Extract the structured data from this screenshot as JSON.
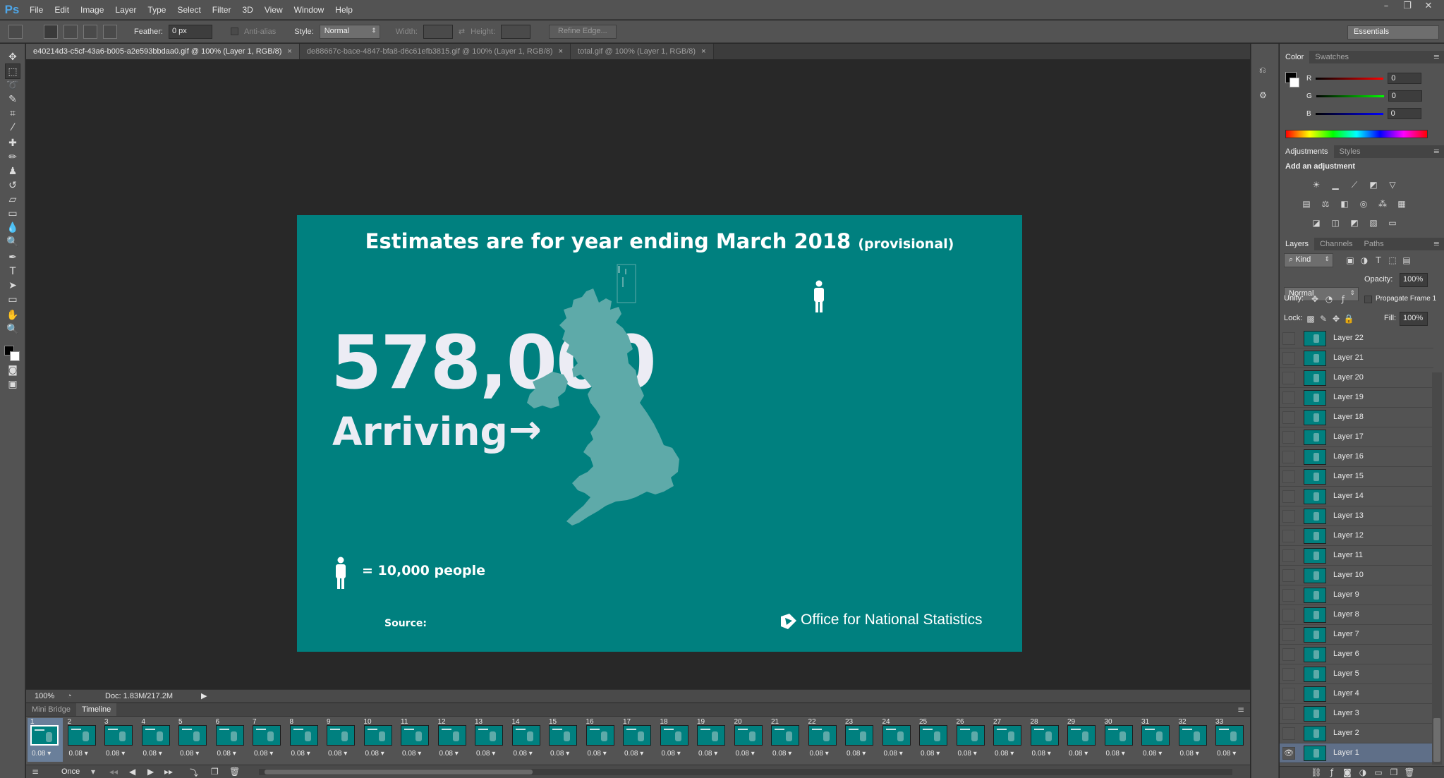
{
  "app": {
    "logo": "Ps",
    "menu": [
      "File",
      "Edit",
      "Image",
      "Layer",
      "Type",
      "Select",
      "Filter",
      "3D",
      "View",
      "Window",
      "Help"
    ],
    "window_controls": [
      "minimize-icon",
      "restore-icon",
      "close-icon"
    ]
  },
  "options_bar": {
    "feather_label": "Feather:",
    "feather_value": "0 px",
    "antialias_label": "Anti-alias",
    "style_label": "Style:",
    "style_value": "Normal",
    "width_label": "Width:",
    "height_label": "Height:",
    "refine_edge": "Refine Edge...",
    "workspace": "Essentials"
  },
  "tabs": [
    {
      "label": "e40214d3-c5cf-43a6-b005-a2e593bbdaa0.gif @ 100% (Layer 1, RGB/8)",
      "active": true
    },
    {
      "label": "de88667c-bace-4847-bfa8-d6c61efb3815.gif @ 100% (Layer 1, RGB/8)",
      "active": false
    },
    {
      "label": "total.gif @ 100% (Layer 1, RGB/8)",
      "active": false
    }
  ],
  "artwork": {
    "headline": "Estimates are for year ending March 2018",
    "headline_sub": "(provisional)",
    "big_number": "578,000",
    "arriving": "Arriving",
    "legend_text": "= 10,000 people",
    "source_label": "Source:",
    "publisher": "Office for National Statistics",
    "colors": {
      "background": "#00807f",
      "map": "#5eaaa9",
      "text": "#ffffff"
    }
  },
  "status": {
    "zoom": "100%",
    "doc_size": "Doc: 1.83M/217.2M"
  },
  "timeline": {
    "tabs": [
      "Mini Bridge",
      "Timeline"
    ],
    "active_tab": "Timeline",
    "frames": [
      {
        "n": "1",
        "d": "0.08"
      },
      {
        "n": "2",
        "d": "0.08"
      },
      {
        "n": "3",
        "d": "0.08"
      },
      {
        "n": "4",
        "d": "0.08"
      },
      {
        "n": "5",
        "d": "0.08"
      },
      {
        "n": "6",
        "d": "0.08"
      },
      {
        "n": "7",
        "d": "0.08"
      },
      {
        "n": "8",
        "d": "0.08"
      },
      {
        "n": "9",
        "d": "0.08"
      },
      {
        "n": "10",
        "d": "0.08"
      },
      {
        "n": "11",
        "d": "0.08"
      },
      {
        "n": "12",
        "d": "0.08"
      },
      {
        "n": "13",
        "d": "0.08"
      },
      {
        "n": "14",
        "d": "0.08"
      },
      {
        "n": "15",
        "d": "0.08"
      },
      {
        "n": "16",
        "d": "0.08"
      },
      {
        "n": "17",
        "d": "0.08"
      },
      {
        "n": "18",
        "d": "0.08"
      },
      {
        "n": "19",
        "d": "0.08"
      },
      {
        "n": "20",
        "d": "0.08"
      },
      {
        "n": "21",
        "d": "0.08"
      },
      {
        "n": "22",
        "d": "0.08"
      },
      {
        "n": "23",
        "d": "0.08"
      },
      {
        "n": "24",
        "d": "0.08"
      },
      {
        "n": "25",
        "d": "0.08"
      },
      {
        "n": "26",
        "d": "0.08"
      },
      {
        "n": "27",
        "d": "0.08"
      },
      {
        "n": "28",
        "d": "0.08"
      },
      {
        "n": "29",
        "d": "0.08"
      },
      {
        "n": "30",
        "d": "0.08"
      },
      {
        "n": "31",
        "d": "0.08"
      },
      {
        "n": "32",
        "d": "0.08"
      },
      {
        "n": "33",
        "d": "0.08"
      }
    ],
    "loop": "Once"
  },
  "color_panel": {
    "tabs": [
      "Color",
      "Swatches"
    ],
    "r_label": "R",
    "g_label": "G",
    "b_label": "B",
    "r": "0",
    "g": "0",
    "b": "0"
  },
  "adjustments_panel": {
    "tabs": [
      "Adjustments",
      "Styles"
    ],
    "title": "Add an adjustment"
  },
  "layers_panel": {
    "tabs": [
      "Layers",
      "Channels",
      "Paths"
    ],
    "kind": "Kind",
    "blend_mode": "Normal",
    "opacity_label": "Opacity:",
    "opacity": "100%",
    "unify_label": "Unify:",
    "propagate": "Propagate Frame 1",
    "lock_label": "Lock:",
    "fill_label": "Fill:",
    "fill": "100%",
    "layers": [
      "Layer 22",
      "Layer 21",
      "Layer 20",
      "Layer 19",
      "Layer 18",
      "Layer 17",
      "Layer 16",
      "Layer 15",
      "Layer 14",
      "Layer 13",
      "Layer 12",
      "Layer 11",
      "Layer 10",
      "Layer 9",
      "Layer 8",
      "Layer 7",
      "Layer 6",
      "Layer 5",
      "Layer 4",
      "Layer 3",
      "Layer 2",
      "Layer 1"
    ],
    "selected": "Layer 1"
  }
}
